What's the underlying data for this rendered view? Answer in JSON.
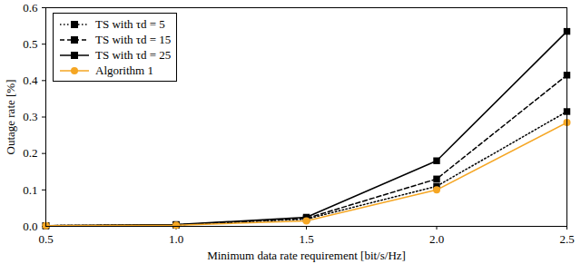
{
  "chart_data": {
    "type": "line",
    "x_label": "Minimum data rate requirement [bit/s/Hz]",
    "y_label": "Outage rate [%]",
    "x": [
      0.5,
      1.0,
      1.5,
      2.0,
      2.5
    ],
    "xlim": [
      0.5,
      2.5
    ],
    "xticks": [
      {
        "value": 0.5,
        "label": "0.5"
      },
      {
        "value": 1,
        "label": "1.0"
      },
      {
        "value": 1.5,
        "label": "1.5"
      },
      {
        "value": 2,
        "label": "2.0"
      },
      {
        "value": 2.5,
        "label": "2.5"
      }
    ],
    "ylim": [
      0,
      0.6
    ],
    "yticks": [
      {
        "value": 0,
        "label": "0.0"
      },
      {
        "value": 0.1,
        "label": "0.1"
      },
      {
        "value": 0.2,
        "label": "0.2"
      },
      {
        "value": 0.3,
        "label": "0.3"
      },
      {
        "value": 0.4,
        "label": "0.4"
      },
      {
        "value": 0.5,
        "label": "0.5"
      },
      {
        "value": 0.6,
        "label": "0.6"
      }
    ],
    "grid": false,
    "legend": "top-left",
    "series": [
      {
        "name": "TS with τd = 5",
        "color": "#000000",
        "marker": "square",
        "line_style": "dotted",
        "values": [
          0.002,
          0.004,
          0.02,
          0.11,
          0.315
        ]
      },
      {
        "name": "TS with τd = 15",
        "color": "#000000",
        "marker": "square",
        "line_style": "dashed",
        "values": [
          0.002,
          0.004,
          0.022,
          0.13,
          0.415
        ]
      },
      {
        "name": "TS with τd = 25",
        "color": "#000000",
        "marker": "square",
        "line_style": "solid",
        "values": [
          0.002,
          0.005,
          0.025,
          0.18,
          0.535
        ]
      },
      {
        "name": "Algorithm 1",
        "color": "#f5a623",
        "marker": "circle",
        "line_style": "solid",
        "values": [
          0.002,
          0.003,
          0.015,
          0.1,
          0.285
        ]
      }
    ]
  }
}
